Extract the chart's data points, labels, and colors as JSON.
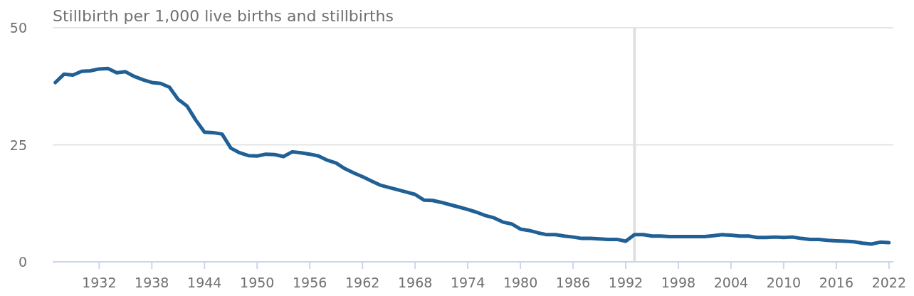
{
  "chart_data": {
    "type": "line",
    "title": "Stillbirth per 1,000 live births and stillbirths",
    "x": [
      1927,
      1928,
      1929,
      1930,
      1931,
      1932,
      1933,
      1934,
      1935,
      1936,
      1937,
      1938,
      1939,
      1940,
      1941,
      1942,
      1943,
      1944,
      1945,
      1946,
      1947,
      1948,
      1949,
      1950,
      1951,
      1952,
      1953,
      1954,
      1955,
      1956,
      1957,
      1958,
      1959,
      1960,
      1961,
      1962,
      1963,
      1964,
      1965,
      1966,
      1967,
      1968,
      1969,
      1970,
      1971,
      1972,
      1973,
      1974,
      1975,
      1976,
      1977,
      1978,
      1979,
      1980,
      1981,
      1982,
      1983,
      1984,
      1985,
      1986,
      1987,
      1988,
      1989,
      1990,
      1991,
      1992,
      1993,
      1994,
      1995,
      1996,
      1997,
      1998,
      1999,
      2000,
      2001,
      2002,
      2003,
      2004,
      2005,
      2006,
      2007,
      2008,
      2009,
      2010,
      2011,
      2012,
      2013,
      2014,
      2015,
      2016,
      2017,
      2018,
      2019,
      2020,
      2021,
      2022
    ],
    "series": [
      {
        "color": "#206095",
        "values": [
          38.3,
          40.1,
          39.9,
          40.7,
          40.8,
          41.2,
          41.3,
          40.4,
          40.6,
          39.6,
          38.9,
          38.3,
          38.1,
          37.3,
          34.7,
          33.3,
          30.3,
          27.7,
          27.6,
          27.3,
          24.3,
          23.3,
          22.7,
          22.6,
          23.0,
          22.9,
          22.5,
          23.5,
          23.3,
          23.0,
          22.6,
          21.7,
          21.1,
          19.9,
          19.0,
          18.2,
          17.3,
          16.4,
          15.9,
          15.4,
          14.9,
          14.4,
          13.2,
          13.1,
          12.7,
          12.2,
          11.7,
          11.2,
          10.6,
          9.9,
          9.4,
          8.5,
          8.1,
          7.0,
          6.7,
          6.2,
          5.8,
          5.8,
          5.5,
          5.3,
          5.0,
          5.0,
          4.9,
          4.8,
          4.8,
          4.4,
          5.8,
          5.8,
          5.5,
          5.5,
          5.4,
          5.4,
          5.4,
          5.4,
          5.4,
          5.6,
          5.8,
          5.7,
          5.5,
          5.5,
          5.2,
          5.2,
          5.3,
          5.2,
          5.3,
          5.0,
          4.8,
          4.8,
          4.6,
          4.5,
          4.4,
          4.3,
          4.0,
          3.8,
          4.2,
          4.1
        ]
      }
    ],
    "xlim": [
      1926.7,
      2022.5
    ],
    "ylim": [
      0,
      50
    ],
    "xticks": [
      1932,
      1938,
      1944,
      1950,
      1956,
      1962,
      1968,
      1974,
      1980,
      1986,
      1992,
      1998,
      2004,
      2010,
      2016,
      2022
    ],
    "yticks": [
      0,
      25,
      50
    ],
    "grid": "y",
    "ref_lines": [
      {
        "axis": "x",
        "value": 1993,
        "color": "#e0e0e0"
      }
    ]
  }
}
